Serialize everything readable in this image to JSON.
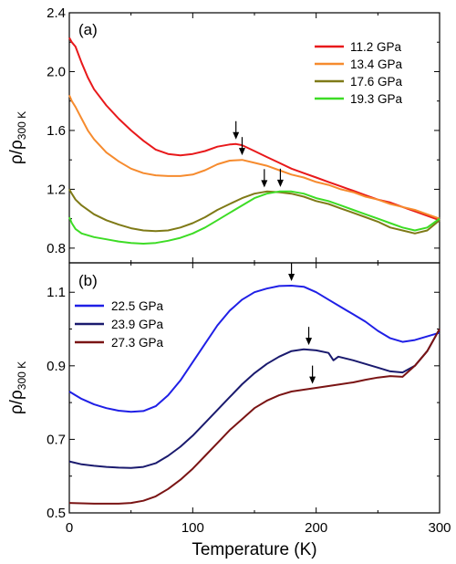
{
  "chart_data": [
    {
      "type": "line",
      "panel_label": "(a)",
      "xlabel": "Temperature (K)",
      "ylabel": "ρ/ρ",
      "ylabel_sub": "300 K",
      "xlim": [
        0,
        300
      ],
      "ylim": [
        0.7,
        2.4
      ],
      "y_ticks": [
        0.8,
        1.2,
        1.6,
        2.0,
        2.4
      ],
      "y_tick_labels": [
        "0.8",
        "1.2",
        "1.6",
        "2.0",
        "2.4"
      ],
      "legend_position": "top-right",
      "grid": false,
      "series": [
        {
          "name": "11.2 GPa",
          "color": "#e8191b",
          "points": [
            [
              0,
              2.23
            ],
            [
              2,
              2.2
            ],
            [
              5,
              2.17
            ],
            [
              10,
              2.06
            ],
            [
              15,
              1.96
            ],
            [
              20,
              1.88
            ],
            [
              30,
              1.77
            ],
            [
              40,
              1.68
            ],
            [
              50,
              1.6
            ],
            [
              60,
              1.53
            ],
            [
              70,
              1.47
            ],
            [
              80,
              1.44
            ],
            [
              90,
              1.43
            ],
            [
              100,
              1.44
            ],
            [
              110,
              1.46
            ],
            [
              120,
              1.49
            ],
            [
              130,
              1.505
            ],
            [
              135,
              1.508
            ],
            [
              140,
              1.5
            ],
            [
              150,
              1.46
            ],
            [
              160,
              1.42
            ],
            [
              170,
              1.38
            ],
            [
              180,
              1.34
            ],
            [
              190,
              1.31
            ],
            [
              200,
              1.28
            ],
            [
              210,
              1.25
            ],
            [
              220,
              1.22
            ],
            [
              230,
              1.19
            ],
            [
              240,
              1.16
            ],
            [
              250,
              1.13
            ],
            [
              260,
              1.11
            ],
            [
              270,
              1.08
            ],
            [
              280,
              1.05
            ],
            [
              290,
              1.02
            ],
            [
              300,
              0.99
            ]
          ],
          "arrow_x": 135
        },
        {
          "name": "13.4 GPa",
          "color": "#f68b2e",
          "points": [
            [
              0,
              1.84
            ],
            [
              2,
              1.8
            ],
            [
              5,
              1.76
            ],
            [
              10,
              1.68
            ],
            [
              15,
              1.6
            ],
            [
              20,
              1.54
            ],
            [
              30,
              1.45
            ],
            [
              40,
              1.39
            ],
            [
              50,
              1.34
            ],
            [
              60,
              1.31
            ],
            [
              70,
              1.295
            ],
            [
              80,
              1.29
            ],
            [
              90,
              1.29
            ],
            [
              100,
              1.3
            ],
            [
              110,
              1.33
            ],
            [
              120,
              1.37
            ],
            [
              130,
              1.395
            ],
            [
              140,
              1.4
            ],
            [
              150,
              1.38
            ],
            [
              160,
              1.36
            ],
            [
              170,
              1.33
            ],
            [
              180,
              1.3
            ],
            [
              190,
              1.28
            ],
            [
              200,
              1.25
            ],
            [
              210,
              1.23
            ],
            [
              220,
              1.2
            ],
            [
              230,
              1.18
            ],
            [
              240,
              1.15
            ],
            [
              250,
              1.13
            ],
            [
              260,
              1.1
            ],
            [
              270,
              1.08
            ],
            [
              280,
              1.06
            ],
            [
              290,
              1.03
            ],
            [
              300,
              1.0
            ]
          ],
          "arrow_x": 140
        },
        {
          "name": "17.6 GPa",
          "color": "#7f7a17",
          "points": [
            [
              0,
              1.2
            ],
            [
              2,
              1.17
            ],
            [
              5,
              1.13
            ],
            [
              10,
              1.09
            ],
            [
              20,
              1.03
            ],
            [
              30,
              0.99
            ],
            [
              40,
              0.96
            ],
            [
              50,
              0.935
            ],
            [
              60,
              0.92
            ],
            [
              70,
              0.915
            ],
            [
              80,
              0.92
            ],
            [
              90,
              0.94
            ],
            [
              100,
              0.97
            ],
            [
              110,
              1.01
            ],
            [
              120,
              1.06
            ],
            [
              130,
              1.1
            ],
            [
              140,
              1.14
            ],
            [
              150,
              1.17
            ],
            [
              160,
              1.185
            ],
            [
              170,
              1.18
            ],
            [
              180,
              1.17
            ],
            [
              190,
              1.15
            ],
            [
              200,
              1.12
            ],
            [
              210,
              1.1
            ],
            [
              220,
              1.07
            ],
            [
              230,
              1.04
            ],
            [
              240,
              1.01
            ],
            [
              250,
              0.98
            ],
            [
              260,
              0.94
            ],
            [
              270,
              0.92
            ],
            [
              280,
              0.9
            ],
            [
              290,
              0.92
            ],
            [
              300,
              0.99
            ]
          ],
          "arrow_x": 158
        },
        {
          "name": "19.3 GPa",
          "color": "#3ddc25",
          "points": [
            [
              0,
              1.01
            ],
            [
              2,
              0.97
            ],
            [
              5,
              0.93
            ],
            [
              10,
              0.9
            ],
            [
              20,
              0.875
            ],
            [
              30,
              0.86
            ],
            [
              40,
              0.845
            ],
            [
              50,
              0.835
            ],
            [
              60,
              0.83
            ],
            [
              70,
              0.835
            ],
            [
              80,
              0.85
            ],
            [
              90,
              0.87
            ],
            [
              100,
              0.9
            ],
            [
              110,
              0.94
            ],
            [
              120,
              0.99
            ],
            [
              130,
              1.04
            ],
            [
              140,
              1.09
            ],
            [
              150,
              1.14
            ],
            [
              160,
              1.17
            ],
            [
              170,
              1.185
            ],
            [
              180,
              1.185
            ],
            [
              190,
              1.17
            ],
            [
              200,
              1.14
            ],
            [
              210,
              1.12
            ],
            [
              220,
              1.09
            ],
            [
              230,
              1.06
            ],
            [
              240,
              1.03
            ],
            [
              250,
              1.0
            ],
            [
              260,
              0.97
            ],
            [
              270,
              0.94
            ],
            [
              280,
              0.92
            ],
            [
              290,
              0.94
            ],
            [
              300,
              1.0
            ]
          ],
          "arrow_x": 171
        }
      ]
    },
    {
      "type": "line",
      "panel_label": "(b)",
      "xlabel": "Temperature (K)",
      "ylabel": "ρ/ρ",
      "ylabel_sub": "300 K",
      "xlim": [
        0,
        300
      ],
      "ylim": [
        0.5,
        1.18
      ],
      "x_ticks": [
        0,
        100,
        200,
        300
      ],
      "x_tick_labels": [
        "0",
        "100",
        "200",
        "300"
      ],
      "y_ticks": [
        0.5,
        0.7,
        0.9,
        1.1
      ],
      "y_tick_labels": [
        "0.5",
        "0.7",
        "0.9",
        "1.1"
      ],
      "legend_position": "top-left",
      "grid": false,
      "series": [
        {
          "name": "22.5 GPa",
          "color": "#1f1fe6",
          "points": [
            [
              0,
              0.83
            ],
            [
              5,
              0.82
            ],
            [
              10,
              0.81
            ],
            [
              20,
              0.795
            ],
            [
              30,
              0.785
            ],
            [
              40,
              0.778
            ],
            [
              50,
              0.775
            ],
            [
              60,
              0.777
            ],
            [
              70,
              0.79
            ],
            [
              80,
              0.82
            ],
            [
              90,
              0.86
            ],
            [
              100,
              0.91
            ],
            [
              110,
              0.96
            ],
            [
              120,
              1.01
            ],
            [
              130,
              1.05
            ],
            [
              140,
              1.08
            ],
            [
              150,
              1.1
            ],
            [
              160,
              1.11
            ],
            [
              170,
              1.117
            ],
            [
              180,
              1.118
            ],
            [
              190,
              1.115
            ],
            [
              200,
              1.1
            ],
            [
              210,
              1.08
            ],
            [
              220,
              1.06
            ],
            [
              230,
              1.04
            ],
            [
              240,
              1.02
            ],
            [
              250,
              0.995
            ],
            [
              260,
              0.975
            ],
            [
              270,
              0.965
            ],
            [
              280,
              0.97
            ],
            [
              290,
              0.98
            ],
            [
              300,
              0.99
            ]
          ],
          "arrow_x": 180
        },
        {
          "name": "23.9 GPa",
          "color": "#1a1a6e",
          "points": [
            [
              0,
              0.64
            ],
            [
              10,
              0.632
            ],
            [
              20,
              0.628
            ],
            [
              30,
              0.625
            ],
            [
              40,
              0.623
            ],
            [
              50,
              0.622
            ],
            [
              60,
              0.625
            ],
            [
              70,
              0.635
            ],
            [
              80,
              0.655
            ],
            [
              90,
              0.68
            ],
            [
              100,
              0.71
            ],
            [
              110,
              0.745
            ],
            [
              120,
              0.78
            ],
            [
              130,
              0.815
            ],
            [
              140,
              0.85
            ],
            [
              150,
              0.88
            ],
            [
              160,
              0.905
            ],
            [
              170,
              0.925
            ],
            [
              180,
              0.94
            ],
            [
              190,
              0.945
            ],
            [
              200,
              0.942
            ],
            [
              210,
              0.935
            ],
            [
              214,
              0.915
            ],
            [
              218,
              0.925
            ],
            [
              230,
              0.915
            ],
            [
              240,
              0.905
            ],
            [
              250,
              0.895
            ],
            [
              260,
              0.885
            ],
            [
              270,
              0.882
            ],
            [
              280,
              0.9
            ],
            [
              290,
              0.94
            ],
            [
              300,
              1.0
            ]
          ],
          "arrow_x": 194
        },
        {
          "name": "27.3 GPa",
          "color": "#7a1414",
          "points": [
            [
              0,
              0.527
            ],
            [
              10,
              0.526
            ],
            [
              20,
              0.525
            ],
            [
              30,
              0.525
            ],
            [
              40,
              0.525
            ],
            [
              50,
              0.527
            ],
            [
              60,
              0.533
            ],
            [
              70,
              0.545
            ],
            [
              80,
              0.565
            ],
            [
              90,
              0.59
            ],
            [
              100,
              0.62
            ],
            [
              110,
              0.655
            ],
            [
              120,
              0.69
            ],
            [
              130,
              0.725
            ],
            [
              140,
              0.755
            ],
            [
              150,
              0.785
            ],
            [
              160,
              0.805
            ],
            [
              170,
              0.82
            ],
            [
              180,
              0.83
            ],
            [
              190,
              0.835
            ],
            [
              200,
              0.84
            ],
            [
              210,
              0.845
            ],
            [
              220,
              0.85
            ],
            [
              230,
              0.855
            ],
            [
              240,
              0.862
            ],
            [
              250,
              0.868
            ],
            [
              260,
              0.872
            ],
            [
              270,
              0.87
            ],
            [
              280,
              0.9
            ],
            [
              290,
              0.94
            ],
            [
              300,
              1.0
            ]
          ],
          "arrow_x": 197
        }
      ]
    }
  ]
}
